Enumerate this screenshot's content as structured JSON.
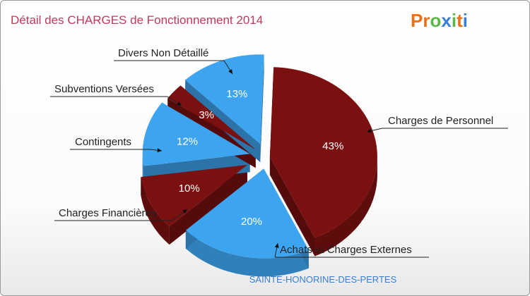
{
  "logo": {
    "letters": [
      "P",
      "r",
      "o",
      "x",
      "i",
      "t",
      "i"
    ],
    "colors": [
      "#e8701a",
      "#e8701a",
      "#59b847",
      "#3a7fd8",
      "#59b847",
      "#e8701a",
      "#3a7fd8"
    ]
  },
  "chart_data": {
    "type": "pie",
    "title": "Détail des CHARGES de Fonctionnement 2014",
    "subtitle": "SAINTE-HONORINE-DES-PERTES",
    "slices": [
      {
        "label": "Charges de Personnel",
        "value": 43,
        "display": "43%",
        "color": "#7a1010"
      },
      {
        "label": "Achats et Charges Externes",
        "value": 20,
        "display": "20%",
        "color": "#3da5f0"
      },
      {
        "label": "Charges Financières",
        "value": 10,
        "display": "10%",
        "color": "#7a1010"
      },
      {
        "label": "Contingents",
        "value": 12,
        "display": "12%",
        "color": "#3da5f0"
      },
      {
        "label": "Subventions Versées",
        "value": 3,
        "display": "3%",
        "color": "#7a1010"
      },
      {
        "label": "Divers Non Détaillé",
        "value": 13,
        "display": "13%",
        "color": "#3da5f0"
      }
    ]
  }
}
